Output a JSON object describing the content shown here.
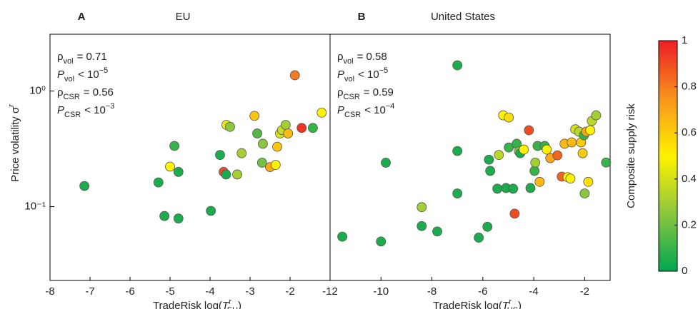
{
  "chart_data": [
    {
      "type": "scatter",
      "letter": "A",
      "title": "EU",
      "ylabel": {
        "text": "Price volatility σ",
        "sup": "r"
      },
      "xlabel": {
        "text": "TradeRisk log(",
        "var": "T",
        "sup": "r",
        "sub": "EU",
        "close": ")"
      },
      "annotations": [
        {
          "sym": "ρ",
          "sub": "vol",
          "rest": "= 0.71"
        },
        {
          "sym": "P",
          "sub": "vol",
          "rest": "< 10",
          "sup": "−5"
        },
        {
          "sym": "ρ",
          "sub": "CSR",
          "rest": "= 0.56"
        },
        {
          "sym": "P",
          "sub": "CSR",
          "rest": "< 10",
          "sup": "−3"
        }
      ],
      "xlim": [
        -8,
        -1
      ],
      "xticks": [
        -8,
        -7,
        -6,
        -5,
        -4,
        -3,
        -2
      ],
      "ylim": [
        0.023,
        3.1
      ],
      "log_y": true,
      "yticks": [
        {
          "value": 0.1,
          "label": "10⁻¹"
        },
        {
          "value": 1,
          "label": "10⁰"
        }
      ],
      "x": [
        -7.14,
        -5.29,
        -5.14,
        -5.0,
        -4.89,
        -4.79,
        -4.79,
        -3.98,
        -3.75,
        -3.66,
        -3.6,
        -3.59,
        -3.5,
        -3.32,
        -3.21,
        -2.82,
        -2.89,
        -2.68,
        -2.7,
        -2.5,
        -2.36,
        -2.32,
        -2.25,
        -2.2,
        -2.11,
        -2.05,
        -1.88,
        -1.71,
        -1.43,
        -1.21
      ],
      "y": [
        0.151,
        0.162,
        0.083,
        0.222,
        0.335,
        0.2,
        0.079,
        0.092,
        0.28,
        0.2,
        0.19,
        0.51,
        0.49,
        0.19,
        0.29,
        0.43,
        0.61,
        0.35,
        0.24,
        0.22,
        0.23,
        0.33,
        0.43,
        0.46,
        0.51,
        0.43,
        1.37,
        0.48,
        0.48,
        0.65
      ],
      "risk": [
        0.05,
        0.05,
        0.05,
        0.5,
        0.1,
        0.05,
        0.05,
        0.05,
        0.05,
        0.9,
        0.05,
        0.45,
        0.25,
        0.3,
        0.3,
        0.15,
        0.62,
        0.25,
        0.2,
        0.7,
        0.5,
        0.62,
        0.42,
        0.38,
        0.3,
        0.65,
        0.8,
        0.95,
        0.1,
        0.5
      ]
    },
    {
      "type": "scatter",
      "letter": "B",
      "title": "United States",
      "xlabel": {
        "text": "TradeRisk log(",
        "var": "T",
        "sup": "r",
        "sub": "US",
        "close": ")"
      },
      "annotations": [
        {
          "sym": "ρ",
          "sub": "vol",
          "rest": "= 0.58"
        },
        {
          "sym": "P",
          "sub": "vol",
          "rest": "< 10",
          "sup": "−5"
        },
        {
          "sym": "ρ",
          "sub": "CSR",
          "rest": "= 0.59"
        },
        {
          "sym": "P",
          "sub": "CSR",
          "rest": "< 10",
          "sup": "−4"
        }
      ],
      "xlim": [
        -12,
        -1
      ],
      "xticks": [
        -12,
        -10,
        -8,
        -6,
        -4,
        -2
      ],
      "ylim": [
        0.023,
        3.1
      ],
      "log_y": true,
      "x": [
        -11.52,
        -10.0,
        -9.81,
        -8.4,
        -8.4,
        -7.79,
        -7.0,
        -7.0,
        -7.0,
        -6.16,
        -5.82,
        -5.76,
        -5.71,
        -5.43,
        -5.37,
        -5.2,
        -5.09,
        -4.98,
        -4.98,
        -4.81,
        -4.75,
        -4.67,
        -4.58,
        -4.53,
        -4.39,
        -4.13,
        -4.19,
        -3.97,
        -3.94,
        -3.85,
        -3.77,
        -3.57,
        -3.49,
        -3.35,
        -3.07,
        -2.9,
        -2.79,
        -2.67,
        -2.56,
        -2.51,
        -2.37,
        -2.22,
        -2.14,
        -2.08,
        -2.03,
        -2.0,
        -1.94,
        -1.86,
        -1.78,
        -1.72,
        -1.55,
        -1.16
      ],
      "y": [
        0.055,
        0.05,
        0.24,
        0.099,
        0.068,
        0.061,
        1.67,
        0.303,
        0.13,
        0.054,
        0.067,
        0.255,
        0.204,
        0.143,
        0.28,
        0.617,
        0.145,
        0.591,
        0.325,
        0.143,
        0.087,
        0.35,
        0.3,
        0.29,
        0.312,
        0.145,
        0.458,
        0.204,
        0.241,
        0.335,
        0.164,
        0.335,
        0.312,
        0.263,
        0.278,
        0.182,
        0.35,
        0.18,
        0.175,
        0.36,
        0.467,
        0.445,
        0.36,
        0.29,
        0.414,
        0.13,
        0.445,
        0.164,
        0.458,
        0.551,
        0.617,
        0.241
      ],
      "risk": [
        0.05,
        0.05,
        0.05,
        0.3,
        0.05,
        0.05,
        0.05,
        0.05,
        0.05,
        0.05,
        0.05,
        0.05,
        0.05,
        0.05,
        0.35,
        0.5,
        0.05,
        0.55,
        0.1,
        0.05,
        0.9,
        0.1,
        0.3,
        0.05,
        0.5,
        0.05,
        0.9,
        0.1,
        0.3,
        0.1,
        0.65,
        0.1,
        0.5,
        0.7,
        0.85,
        0.85,
        0.65,
        0.5,
        0.5,
        0.65,
        0.4,
        0.35,
        0.6,
        0.6,
        0.1,
        0.25,
        0.7,
        0.55,
        0.5,
        0.35,
        0.3,
        0.1
      ]
    }
  ],
  "colorbar": {
    "label": "Composite supply risk",
    "lim": [
      0,
      1
    ],
    "ticks": [
      0,
      0.2,
      0.4,
      0.6,
      0.8,
      1
    ],
    "colors": [
      "#00a651",
      "#8cc63f",
      "#fff200",
      "#f7941d",
      "#ed1c24"
    ]
  }
}
